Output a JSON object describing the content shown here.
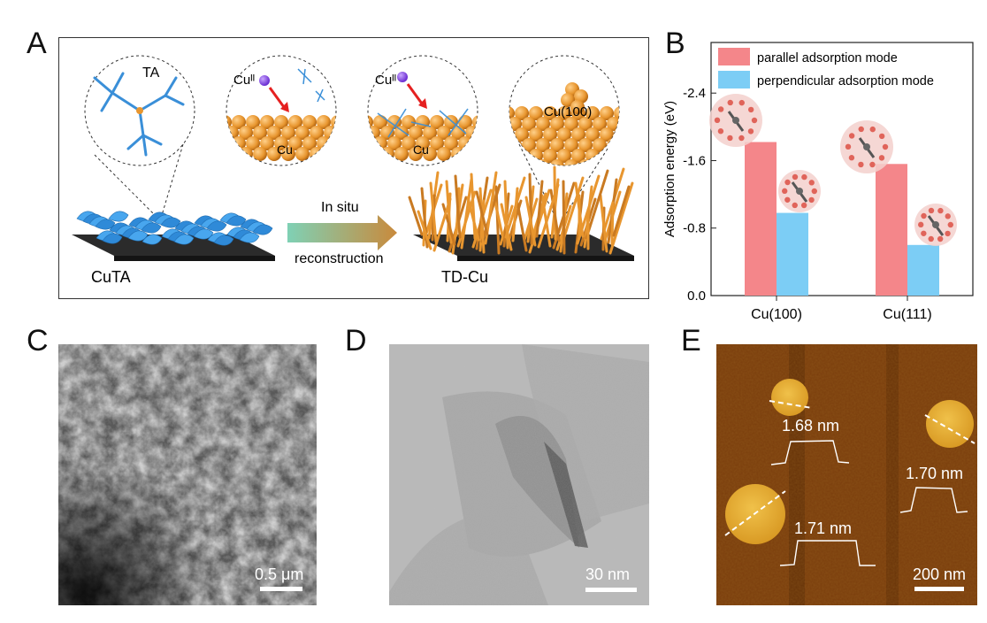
{
  "panels": {
    "a": {
      "letter": "A",
      "ta_label": "TA",
      "cu2_label_1": "Cuᴵᴵ",
      "cu2_label_2": "Cuᴵᴵ",
      "cu_label_1": "Cu",
      "cu_label_2": "Cu",
      "cu100_label": "Cu(100)",
      "arrow_top": "In situ",
      "arrow_bottom": "reconstruction",
      "left_name": "CuTA",
      "right_name": "TD-Cu",
      "colors": {
        "tdpf": "#2f8ad8",
        "copper": "#e8962f",
        "arrow_start": "#7fd1b5",
        "arrow_end": "#c98a3c",
        "substrate": "#2b2b2b"
      }
    },
    "b": {
      "letter": "B"
    },
    "c": {
      "letter": "C",
      "scale_label": "0.5 μm"
    },
    "d": {
      "letter": "D",
      "scale_label": "30 nm"
    },
    "e": {
      "letter": "E",
      "scale_label": "200 nm",
      "profiles": [
        "1.68 nm",
        "1.70 nm",
        "1.71 nm"
      ],
      "colors": {
        "background": "#7a3d0c",
        "flake": "#e4b03a"
      }
    }
  },
  "chart_data": {
    "type": "bar",
    "categories": [
      "Cu(100)",
      "Cu(111)"
    ],
    "series": [
      {
        "name": "parallel adsorption mode",
        "color": "#f4868a",
        "values": [
          -1.82,
          -1.56
        ]
      },
      {
        "name": "perpendicular adsorption mode",
        "color": "#7ccdf5",
        "values": [
          -0.98,
          -0.6
        ]
      }
    ],
    "ylabel": "Adsorption energy (eV)",
    "y_ticks": [
      "-2.4",
      "-1.6",
      "-0.8",
      "0.0"
    ],
    "ylim": [
      0.0,
      -3.0
    ],
    "legend_position": "top"
  }
}
